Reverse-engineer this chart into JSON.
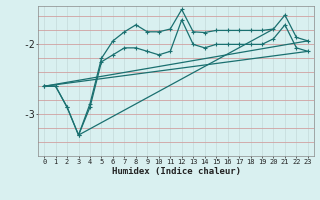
{
  "xlabel": "Humidex (Indice chaleur)",
  "bg_color": "#d9f0f0",
  "grid_color_v": "#c8dede",
  "grid_color_h": "#d0a0a0",
  "line_color": "#1a7070",
  "x_ticks": [
    0,
    1,
    2,
    3,
    4,
    5,
    6,
    7,
    8,
    9,
    10,
    11,
    12,
    13,
    14,
    15,
    16,
    17,
    18,
    19,
    20,
    21,
    22,
    23
  ],
  "ylim": [
    -3.6,
    -1.45
  ],
  "yticks": [
    -3,
    -2
  ],
  "curve1_x": [
    0,
    1,
    2,
    3,
    4,
    5,
    6,
    7,
    8,
    9,
    10,
    11,
    12,
    13,
    14,
    15,
    16,
    17,
    18,
    19,
    20,
    21,
    22,
    23
  ],
  "curve1_y": [
    -2.6,
    -2.6,
    -2.9,
    -3.3,
    -2.9,
    -2.25,
    -2.15,
    -2.05,
    -2.05,
    -2.1,
    -2.15,
    -2.1,
    -1.65,
    -2.0,
    -2.05,
    -2.0,
    -2.0,
    -2.0,
    -2.0,
    -2.0,
    -1.92,
    -1.72,
    -2.05,
    -2.1
  ],
  "curve2_x": [
    0,
    1,
    2,
    3,
    4,
    5,
    6,
    7,
    8,
    9,
    10,
    11,
    12,
    13,
    14,
    15,
    16,
    17,
    18,
    19,
    20,
    21,
    22,
    23
  ],
  "curve2_y": [
    -2.6,
    -2.6,
    -2.9,
    -3.3,
    -2.85,
    -2.2,
    -1.95,
    -1.82,
    -1.72,
    -1.82,
    -1.82,
    -1.78,
    -1.5,
    -1.82,
    -1.83,
    -1.8,
    -1.8,
    -1.8,
    -1.8,
    -1.8,
    -1.78,
    -1.58,
    -1.9,
    -1.95
  ],
  "line1_x": [
    0,
    23
  ],
  "line1_y": [
    -2.6,
    -1.95
  ],
  "line2_x": [
    0,
    23
  ],
  "line2_y": [
    -2.6,
    -2.1
  ],
  "line3_x": [
    3,
    20
  ],
  "line3_y": [
    -3.3,
    -1.78
  ]
}
